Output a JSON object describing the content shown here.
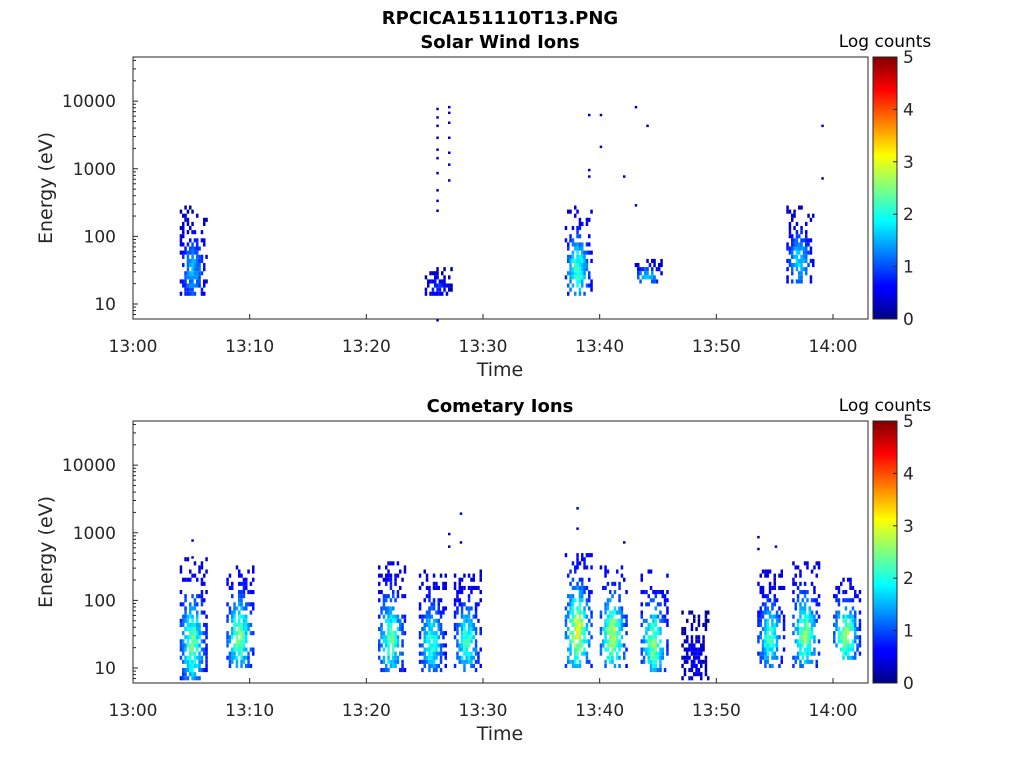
{
  "figure": {
    "title": "RPCICA151110T13.PNG"
  },
  "chart_data": [
    {
      "type": "heatmap",
      "title": "Solar Wind Ions",
      "xlabel": "Time",
      "ylabel": "Energy (eV)",
      "yscale": "log",
      "xlim": [
        "13:00",
        "14:03"
      ],
      "ylim": [
        6,
        45000
      ],
      "x_ticks": [
        "13:00",
        "13:10",
        "13:20",
        "13:30",
        "13:40",
        "13:50",
        "14:00"
      ],
      "y_ticks": [
        10,
        100,
        1000,
        10000
      ],
      "y_tick_labels": [
        "10",
        "100",
        "1000",
        "10000"
      ],
      "colorbar": {
        "label": "Log counts",
        "range": [
          0,
          5
        ],
        "ticks": [
          "0",
          "1",
          "2",
          "3",
          "4",
          "5"
        ]
      },
      "clusters": [
        {
          "time": "13:05",
          "e_low": 12,
          "e_high": 250,
          "max_log_counts": 1.7
        },
        {
          "time": "13:26",
          "e_low": 12,
          "e_high": 35,
          "max_log_counts": 1.0
        },
        {
          "time": "13:38",
          "e_low": 12,
          "e_high": 250,
          "max_log_counts": 2.4
        },
        {
          "time": "13:44",
          "e_low": 18,
          "e_high": 45,
          "max_log_counts": 1.9
        },
        {
          "time": "13:57",
          "e_low": 18,
          "e_high": 250,
          "max_log_counts": 1.9
        }
      ],
      "scatter": [
        {
          "time": "13:26",
          "energies": [
            8000,
            6000,
            4500,
            3000,
            2000,
            1500,
            900,
            500,
            350,
            250,
            6
          ]
        },
        {
          "time": "13:27",
          "energies": [
            8500,
            7000,
            5000,
            3000,
            1800,
            1200,
            700
          ]
        },
        {
          "time": "13:39",
          "energies": [
            6500,
            800,
            1000
          ]
        },
        {
          "time": "13:40",
          "energies": [
            6500,
            2200
          ]
        },
        {
          "time": "13:42",
          "energies": [
            800
          ]
        },
        {
          "time": "13:43",
          "energies": [
            8500,
            300
          ]
        },
        {
          "time": "13:44",
          "energies": [
            4500
          ]
        },
        {
          "time": "13:59",
          "energies": [
            4500,
            750
          ]
        }
      ]
    },
    {
      "type": "heatmap",
      "title": "Cometary Ions",
      "xlabel": "Time",
      "ylabel": "Energy (eV)",
      "yscale": "log",
      "xlim": [
        "13:00",
        "14:03"
      ],
      "ylim": [
        6,
        45000
      ],
      "x_ticks": [
        "13:00",
        "13:10",
        "13:20",
        "13:30",
        "13:40",
        "13:50",
        "14:00"
      ],
      "y_ticks": [
        10,
        100,
        1000,
        10000
      ],
      "y_tick_labels": [
        "10",
        "100",
        "1000",
        "10000"
      ],
      "colorbar": {
        "label": "Log counts",
        "range": [
          0,
          5
        ],
        "ticks": [
          "0",
          "1",
          "2",
          "3",
          "4",
          "5"
        ]
      },
      "clusters": [
        {
          "time": "13:05",
          "e_low": 6,
          "e_high": 400,
          "max_log_counts": 2.6
        },
        {
          "time": "13:09",
          "e_low": 10,
          "e_high": 300,
          "max_log_counts": 2.8
        },
        {
          "time": "13:22",
          "e_low": 8,
          "e_high": 350,
          "max_log_counts": 2.6
        },
        {
          "time": "13:25.5",
          "e_low": 8,
          "e_high": 250,
          "max_log_counts": 2.3
        },
        {
          "time": "13:28.5",
          "e_low": 8,
          "e_high": 250,
          "max_log_counts": 2.4
        },
        {
          "time": "13:38",
          "e_low": 10,
          "e_high": 450,
          "max_log_counts": 3.3
        },
        {
          "time": "13:41",
          "e_low": 10,
          "e_high": 300,
          "max_log_counts": 3.1
        },
        {
          "time": "13:44.5",
          "e_low": 8,
          "e_high": 250,
          "max_log_counts": 2.8
        },
        {
          "time": "13:48",
          "e_low": 6,
          "e_high": 70,
          "max_log_counts": 0.7
        },
        {
          "time": "13:54.5",
          "e_low": 10,
          "e_high": 250,
          "max_log_counts": 2.4
        },
        {
          "time": "13:57.5",
          "e_low": 10,
          "e_high": 350,
          "max_log_counts": 2.8
        },
        {
          "time": "14:01",
          "e_low": 12,
          "e_high": 200,
          "max_log_counts": 3.0
        }
      ],
      "scatter": [
        {
          "time": "13:05",
          "energies": [
            800,
            450
          ]
        },
        {
          "time": "13:27",
          "energies": [
            1000,
            650
          ]
        },
        {
          "time": "13:28",
          "energies": [
            2000,
            750
          ]
        },
        {
          "time": "13:38",
          "energies": [
            2400,
            1200
          ]
        },
        {
          "time": "13:42",
          "energies": [
            750
          ]
        },
        {
          "time": "13:53.5",
          "energies": [
            900,
            600
          ]
        },
        {
          "time": "13:55",
          "energies": [
            650
          ]
        }
      ]
    }
  ]
}
